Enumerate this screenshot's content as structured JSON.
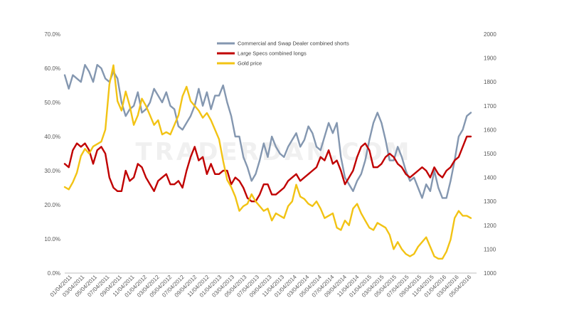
{
  "watermark": "TRADERDAN.COM",
  "chart_data": {
    "type": "line",
    "legend_position": "top-center",
    "grid": false,
    "y_left": {
      "range": [
        0,
        70
      ],
      "unit": "%",
      "ticks": [
        "0.0%",
        "10.0%",
        "20.0%",
        "30.0%",
        "40.0%",
        "50.0%",
        "60.0%",
        "70.0%"
      ]
    },
    "y_right": {
      "range": [
        1000,
        2000
      ],
      "ticks": [
        "1000",
        "1100",
        "1200",
        "1300",
        "1400",
        "1500",
        "1600",
        "1700",
        "1800",
        "1900",
        "2000"
      ]
    },
    "x_ticks": [
      "01/04/2011",
      "03/04/2011",
      "05/04/2011",
      "07/04/2011",
      "09/04/2011",
      "11/04/2011",
      "01/04/2012",
      "03/04/2012",
      "05/04/2012",
      "07/04/2012",
      "09/04/2012",
      "11/04/2012",
      "01/04/2013",
      "03/04/2013",
      "05/04/2013",
      "07/04/2013",
      "09/04/2013",
      "11/04/2013",
      "01/04/2014",
      "03/04/2014",
      "05/04/2014",
      "07/04/2014",
      "09/04/2014",
      "11/04/2014",
      "01/04/2015",
      "03/04/2015",
      "05/04/2015",
      "07/04/2015",
      "09/04/2015",
      "11/04/2015",
      "01/04/2016",
      "03/04/2016",
      "05/04/2016"
    ],
    "series": [
      {
        "name": "Commercial and Swap Dealer combined shorts",
        "color": "#8497b0",
        "axis": "left",
        "values": [
          58,
          54,
          58,
          57,
          56,
          61,
          59,
          56,
          61,
          60,
          57,
          56,
          59,
          57,
          50,
          46,
          48,
          49,
          53,
          47,
          48,
          50,
          54,
          52,
          50,
          53,
          49,
          48,
          43,
          42,
          44,
          46,
          49,
          54,
          49,
          53,
          48,
          52,
          52,
          55,
          50,
          46,
          40,
          40,
          34,
          31,
          27,
          29,
          33,
          38,
          34,
          40,
          37,
          35,
          34,
          37,
          39,
          41,
          37,
          39,
          43,
          41,
          37,
          36,
          40,
          44,
          41,
          44,
          34,
          28,
          26,
          24,
          27,
          29,
          33,
          39,
          44,
          47,
          44,
          39,
          33,
          33,
          37,
          34,
          30,
          27,
          28,
          25,
          22,
          26,
          24,
          30,
          25,
          22,
          22,
          27,
          33,
          40,
          42,
          46,
          47
        ]
      },
      {
        "name": "Large Specs combined longs",
        "color": "#c00000",
        "axis": "left",
        "values": [
          32,
          31,
          36,
          38,
          37,
          38,
          36,
          32,
          36,
          37,
          35,
          28,
          25,
          24,
          24,
          30,
          27,
          28,
          32,
          31,
          28,
          26,
          24,
          27,
          28,
          29,
          26,
          26,
          27,
          25,
          30,
          34,
          37,
          33,
          34,
          29,
          32,
          29,
          29,
          30,
          30,
          26,
          28,
          27,
          25,
          22,
          21,
          21,
          23,
          26,
          26,
          23,
          23,
          24,
          25,
          27,
          28,
          29,
          27,
          28,
          29,
          30,
          31,
          34,
          33,
          36,
          32,
          33,
          30,
          26,
          28,
          30,
          34,
          37,
          38,
          36,
          31,
          31,
          32,
          34,
          35,
          34,
          32,
          31,
          29,
          28,
          29,
          30,
          31,
          30,
          28,
          31,
          29,
          28,
          30,
          31,
          33,
          34,
          37,
          40,
          40
        ]
      },
      {
        "name": "Gold price",
        "color": "#f2c314",
        "axis": "right",
        "values": [
          1360,
          1350,
          1380,
          1420,
          1490,
          1520,
          1500,
          1530,
          1540,
          1550,
          1600,
          1790,
          1870,
          1720,
          1680,
          1760,
          1700,
          1620,
          1660,
          1730,
          1700,
          1660,
          1620,
          1640,
          1580,
          1590,
          1580,
          1620,
          1660,
          1740,
          1780,
          1720,
          1700,
          1680,
          1650,
          1670,
          1640,
          1600,
          1560,
          1470,
          1390,
          1360,
          1320,
          1260,
          1280,
          1290,
          1330,
          1300,
          1280,
          1260,
          1270,
          1220,
          1250,
          1240,
          1230,
          1280,
          1300,
          1370,
          1320,
          1310,
          1290,
          1280,
          1300,
          1270,
          1230,
          1240,
          1250,
          1190,
          1180,
          1220,
          1200,
          1270,
          1290,
          1250,
          1220,
          1190,
          1180,
          1210,
          1200,
          1190,
          1160,
          1100,
          1130,
          1100,
          1080,
          1070,
          1080,
          1110,
          1130,
          1150,
          1110,
          1070,
          1060,
          1060,
          1090,
          1140,
          1230,
          1260,
          1240,
          1240,
          1230
        ]
      }
    ]
  }
}
